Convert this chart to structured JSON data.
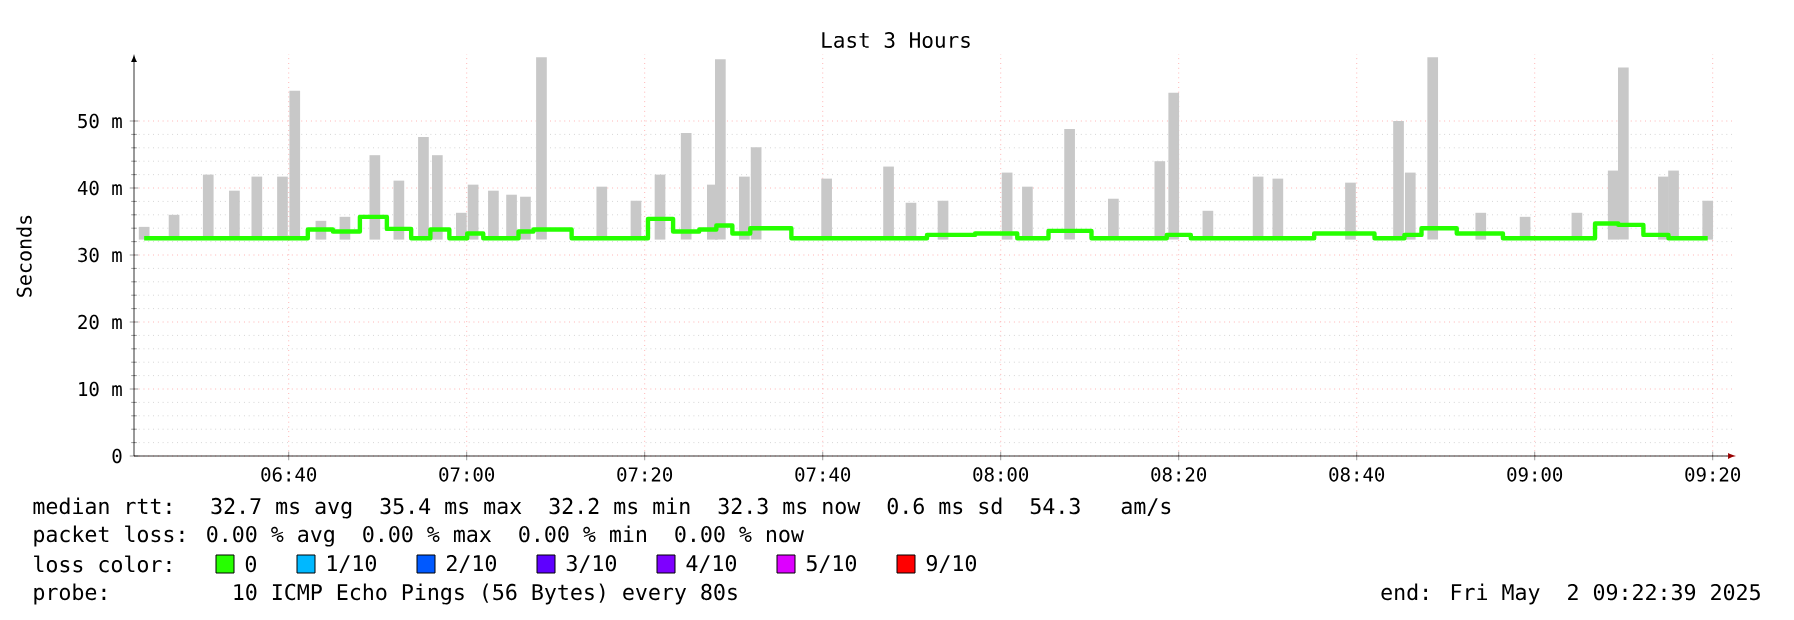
{
  "chart_data": {
    "type": "bar",
    "title": "Last 3 Hours",
    "ylabel": "Seconds",
    "xlim": [
      6.377,
      9.377
    ],
    "xticks": [
      {
        "value": 6.6667,
        "label": "06:40"
      },
      {
        "value": 7,
        "label": "07:00"
      },
      {
        "value": 7.3333,
        "label": "07:20"
      },
      {
        "value": 7.6667,
        "label": "07:40"
      },
      {
        "value": 8,
        "label": "08:00"
      },
      {
        "value": 8.3333,
        "label": "08:20"
      },
      {
        "value": 8.6667,
        "label": "08:40"
      },
      {
        "value": 9,
        "label": "09:00"
      },
      {
        "value": 9.3333,
        "label": "09:20"
      }
    ],
    "ylim": [
      0,
      60
    ],
    "yticks": [
      0,
      {
        "value": 10,
        "label": "10 m"
      },
      {
        "value": 20,
        "label": "20 m"
      },
      {
        "value": 30,
        "label": "30 m"
      },
      {
        "value": 40,
        "label": "40 m"
      },
      {
        "value": 50,
        "label": "50 m"
      }
    ],
    "grid": true,
    "legend": "bottom",
    "series": [
      {
        "color": "#c8c8c8",
        "x": [
          6.396,
          6.452,
          6.516,
          6.565,
          6.607,
          6.655,
          6.678,
          6.727,
          6.772,
          6.828,
          6.873,
          6.919,
          6.945,
          6.99,
          7.012,
          7.05,
          7.084,
          7.11,
          7.14,
          7.253,
          7.317,
          7.362,
          7.411,
          7.46,
          7.475,
          7.52,
          7.542,
          7.674,
          7.79,
          7.832,
          7.892,
          8.012,
          8.05,
          8.129,
          8.211,
          8.298,
          8.324,
          8.388,
          8.482,
          8.519,
          8.655,
          8.745,
          8.767,
          8.809,
          8.899,
          8.982,
          9.079,
          9.147,
          9.166,
          9.241,
          9.26,
          9.324
        ],
        "base": [
          32.3,
          32.3,
          32.3,
          32.3,
          32.3,
          32.3,
          32.3,
          32.3,
          32.3,
          32.3,
          32.3,
          32.3,
          32.3,
          32.3,
          32.3,
          32.3,
          32.3,
          32.3,
          32.3,
          32.3,
          32.3,
          32.3,
          32.3,
          32.3,
          32.3,
          32.3,
          32.3,
          32.3,
          32.3,
          32.3,
          32.3,
          32.3,
          32.3,
          32.3,
          32.3,
          32.3,
          32.3,
          32.3,
          32.3,
          32.3,
          32.3,
          32.3,
          32.3,
          32.3,
          32.3,
          32.3,
          32.3,
          32.3,
          32.3,
          32.3,
          32.3,
          32.3
        ],
        "values": [
          1.9,
          3.7,
          9.7,
          7.3,
          9.4,
          9.4,
          22.2,
          2.8,
          3.4,
          12.6,
          8.8,
          15.3,
          12.6,
          4.0,
          8.2,
          7.3,
          6.7,
          6.4,
          27.2,
          7.9,
          5.8,
          9.7,
          15.9,
          8.2,
          26.9,
          9.4,
          13.8,
          9.1,
          10.9,
          5.5,
          5.8,
          10.0,
          7.9,
          16.5,
          6.1,
          11.7,
          21.9,
          4.3,
          9.4,
          9.1,
          8.5,
          17.7,
          10.0,
          27.2,
          4.0,
          3.4,
          4.0,
          10.3,
          25.7,
          9.4,
          10.3,
          5.8
        ]
      },
      {
        "type": "step",
        "name": "0",
        "color": "#26ff00",
        "x": [
          6.396,
          6.452,
          6.516,
          6.565,
          6.607,
          6.655,
          6.678,
          6.727,
          6.772,
          6.828,
          6.873,
          6.919,
          6.945,
          6.99,
          7.012,
          7.05,
          7.084,
          7.11,
          7.14,
          7.253,
          7.317,
          7.362,
          7.411,
          7.46,
          7.475,
          7.52,
          7.542,
          7.674,
          7.79,
          7.832,
          7.892,
          8.012,
          8.05,
          8.129,
          8.211,
          8.298,
          8.324,
          8.388,
          8.482,
          8.519,
          8.655,
          8.745,
          8.767,
          8.809,
          8.899,
          8.982,
          9.079,
          9.147,
          9.166,
          9.241,
          9.26,
          9.324
        ],
        "values": [
          32.5,
          32.5,
          32.5,
          32.5,
          32.5,
          32.5,
          32.5,
          33.8,
          33.5,
          35.7,
          33.9,
          32.5,
          33.8,
          32.5,
          33.2,
          32.5,
          32.5,
          33.5,
          33.8,
          32.5,
          32.5,
          35.4,
          33.5,
          33.8,
          34.4,
          33.2,
          34.0,
          32.5,
          32.5,
          32.5,
          33.0,
          33.2,
          32.5,
          33.6,
          32.5,
          32.5,
          33.0,
          32.5,
          32.5,
          32.5,
          33.2,
          32.5,
          33.0,
          34.0,
          33.2,
          32.5,
          32.5,
          34.7,
          34.5,
          33.0,
          32.5,
          32.5
        ]
      },
      {
        "name": "1/10",
        "color": "#00b8ff"
      },
      {
        "name": "2/10",
        "color": "#0059ff"
      },
      {
        "name": "3/10",
        "color": "#5e00ff"
      },
      {
        "name": "4/10",
        "color": "#7e00ff"
      },
      {
        "name": "5/10",
        "color": "#dd00ff"
      },
      {
        "name": "9/10",
        "color": "#ff0000"
      }
    ],
    "annotations": [
      "median rtt:  32.7 ms avg  35.4 ms max  32.2 ms min  32.3 ms now  0.6 ms sd  54.3   am/s",
      "packet loss: 0.00 % avg  0.00 % max  0.00 % min  0.00 % now",
      "loss color:",
      "probe:       10 ICMP Echo Pings (56 Bytes) every 80s",
      "end: Fri May  2 09:22:39 2025"
    ]
  }
}
